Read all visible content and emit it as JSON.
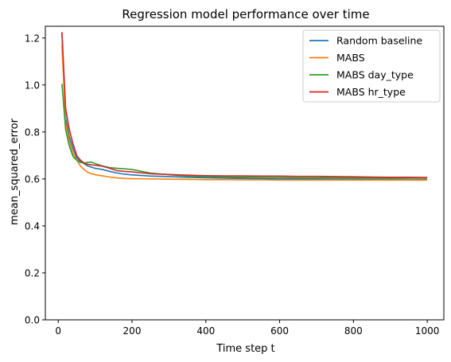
{
  "chart_data": {
    "type": "line",
    "title": "Regression model performance over time",
    "xlabel": "Time step t",
    "ylabel": "mean_squared_error",
    "xlim": [
      -35,
      1045
    ],
    "ylim": [
      0.0,
      1.25
    ],
    "xticks": [
      0,
      200,
      400,
      600,
      800,
      1000
    ],
    "yticks": [
      0.0,
      0.2,
      0.4,
      0.6,
      0.8,
      1.0,
      1.2
    ],
    "xtick_labels": [
      "0",
      "200",
      "400",
      "600",
      "800",
      "1000"
    ],
    "ytick_labels": [
      "0.0",
      "0.2",
      "0.4",
      "0.6",
      "0.8",
      "1.0",
      "1.2"
    ],
    "grid": false,
    "legend_position": "top-right",
    "series": [
      {
        "name": "Random baseline",
        "color": "#1f77b4",
        "x": [
          10,
          20,
          30,
          40,
          50,
          60,
          70,
          80,
          90,
          100,
          120,
          140,
          160,
          180,
          200,
          250,
          300,
          350,
          400,
          450,
          500,
          550,
          600,
          650,
          700,
          750,
          800,
          850,
          900,
          950,
          1000
        ],
        "y": [
          1.22,
          0.86,
          0.78,
          0.73,
          0.69,
          0.675,
          0.665,
          0.655,
          0.65,
          0.645,
          0.64,
          0.632,
          0.625,
          0.62,
          0.617,
          0.612,
          0.61,
          0.607,
          0.605,
          0.603,
          0.602,
          0.601,
          0.6,
          0.6,
          0.6,
          0.599,
          0.598,
          0.598,
          0.598,
          0.597,
          0.597
        ]
      },
      {
        "name": "MABS",
        "color": "#ff7f0e",
        "x": [
          10,
          20,
          30,
          40,
          50,
          60,
          70,
          80,
          90,
          100,
          120,
          140,
          160,
          180,
          200,
          250,
          300,
          350,
          400,
          450,
          500,
          550,
          600,
          650,
          700,
          750,
          800,
          850,
          900,
          950,
          1000
        ],
        "y": [
          1.17,
          0.84,
          0.76,
          0.71,
          0.68,
          0.655,
          0.64,
          0.628,
          0.622,
          0.618,
          0.613,
          0.608,
          0.604,
          0.602,
          0.601,
          0.6,
          0.599,
          0.598,
          0.597,
          0.597,
          0.596,
          0.596,
          0.595,
          0.595,
          0.595,
          0.595,
          0.595,
          0.595,
          0.595,
          0.595,
          0.595
        ]
      },
      {
        "name": "MABS day_type",
        "color": "#2ca02c",
        "x": [
          10,
          20,
          30,
          40,
          50,
          60,
          70,
          80,
          90,
          100,
          120,
          140,
          160,
          180,
          200,
          250,
          300,
          350,
          400,
          450,
          500,
          550,
          600,
          650,
          700,
          750,
          800,
          850,
          900,
          950,
          1000
        ],
        "y": [
          1.005,
          0.81,
          0.74,
          0.695,
          0.68,
          0.67,
          0.668,
          0.67,
          0.672,
          0.665,
          0.655,
          0.648,
          0.645,
          0.643,
          0.64,
          0.625,
          0.618,
          0.612,
          0.61,
          0.608,
          0.607,
          0.606,
          0.606,
          0.605,
          0.605,
          0.605,
          0.604,
          0.604,
          0.603,
          0.603,
          0.603
        ]
      },
      {
        "name": "MABS hr_type",
        "color": "#d62728",
        "x": [
          10,
          20,
          30,
          40,
          50,
          60,
          70,
          80,
          90,
          100,
          120,
          140,
          160,
          180,
          200,
          250,
          300,
          350,
          400,
          450,
          500,
          550,
          600,
          650,
          700,
          750,
          800,
          850,
          900,
          950,
          1000
        ],
        "y": [
          1.225,
          0.9,
          0.81,
          0.75,
          0.7,
          0.68,
          0.668,
          0.662,
          0.66,
          0.658,
          0.654,
          0.645,
          0.635,
          0.632,
          0.63,
          0.622,
          0.619,
          0.616,
          0.614,
          0.613,
          0.613,
          0.612,
          0.612,
          0.611,
          0.611,
          0.61,
          0.609,
          0.608,
          0.607,
          0.607,
          0.606
        ]
      }
    ]
  }
}
